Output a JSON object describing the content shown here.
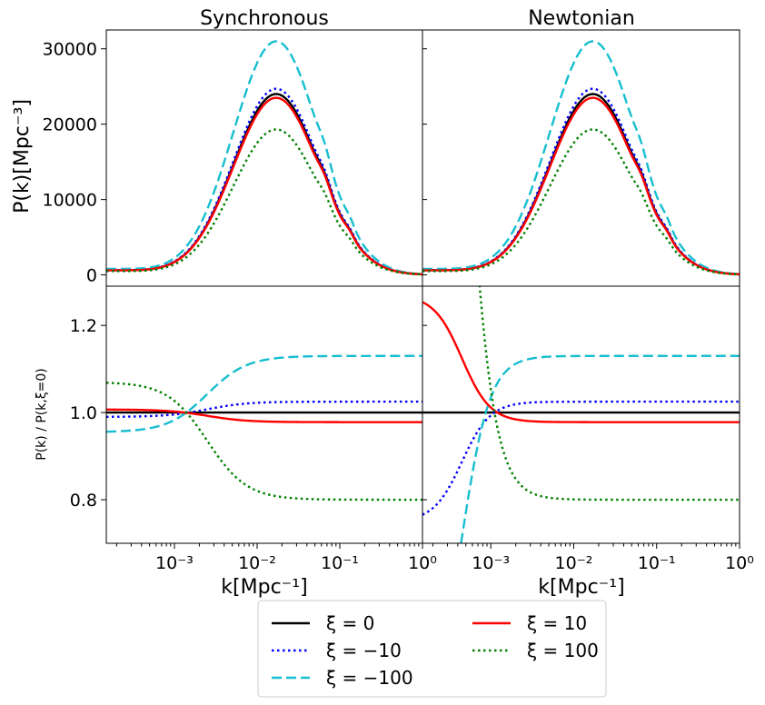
{
  "chart_data": {
    "type": "line",
    "panels": [
      {
        "title": "Synchronous",
        "position": "top-left"
      },
      {
        "title": "Newtonian",
        "position": "top-right"
      }
    ],
    "x_axis": {
      "label": "k[Mpc⁻¹]",
      "scale": "log",
      "range": [
        0.00015,
        1.0
      ],
      "tick_labels_left": [
        "10⁻³",
        "10⁻²",
        "10⁻¹",
        "10⁰"
      ],
      "tick_labels_right": [
        "10⁰",
        "10⁻³",
        "10⁻²",
        "10⁻¹",
        "10⁰"
      ]
    },
    "top_y_axis": {
      "label": "P(k)[Mpc⁻³]",
      "range": [
        -1500,
        32500
      ],
      "ticks": [
        0,
        10000,
        20000,
        30000
      ],
      "tick_labels": [
        "0",
        "10000",
        "20000",
        "30000"
      ]
    },
    "bottom_y_axis": {
      "label": "P(k) / P(k,ξ=0)",
      "range": [
        0.7,
        1.29
      ],
      "ticks": [
        0.8,
        1.0,
        1.2
      ],
      "tick_labels": [
        "0.8",
        "1.0",
        "1.2"
      ]
    },
    "legend": {
      "placement": "below",
      "columns": 2,
      "order": [
        "xi0",
        "xi_m10",
        "xi_m100",
        "xi10",
        "xi100"
      ]
    },
    "series": [
      {
        "id": "xi0",
        "name": "ξ = 0",
        "color": "#000000",
        "dash": "solid",
        "peak": 24000,
        "ratio_sync": [
          1.0,
          1.0,
          1.0
        ],
        "ratio_newt_low": 1.0
      },
      {
        "id": "xi_m10",
        "name": "ξ = −10",
        "color": "#0000ff",
        "dash": "dotted",
        "peak": 24700,
        "ratio_sync": [
          0.99,
          1.0,
          1.025
        ],
        "ratio_newt_low": 0.75
      },
      {
        "id": "xi_m100",
        "name": "ξ = −100",
        "color": "#17becf",
        "dash": "dashed",
        "peak": 31000,
        "ratio_sync": [
          0.955,
          1.0,
          1.13
        ],
        "ratio_newt_low": 0.3
      },
      {
        "id": "xi10",
        "name": "ξ = 10",
        "color": "#ff0000",
        "dash": "solid",
        "peak": 23500,
        "ratio_sync": [
          1.007,
          1.0,
          0.978
        ],
        "ratio_newt_low": 1.27
      },
      {
        "id": "xi100",
        "name": "ξ = 100",
        "color": "#008000",
        "dash": "dotted",
        "peak": 19300,
        "ratio_sync": [
          1.07,
          1.0,
          0.8
        ],
        "ratio_newt_low": 3.0
      }
    ]
  }
}
